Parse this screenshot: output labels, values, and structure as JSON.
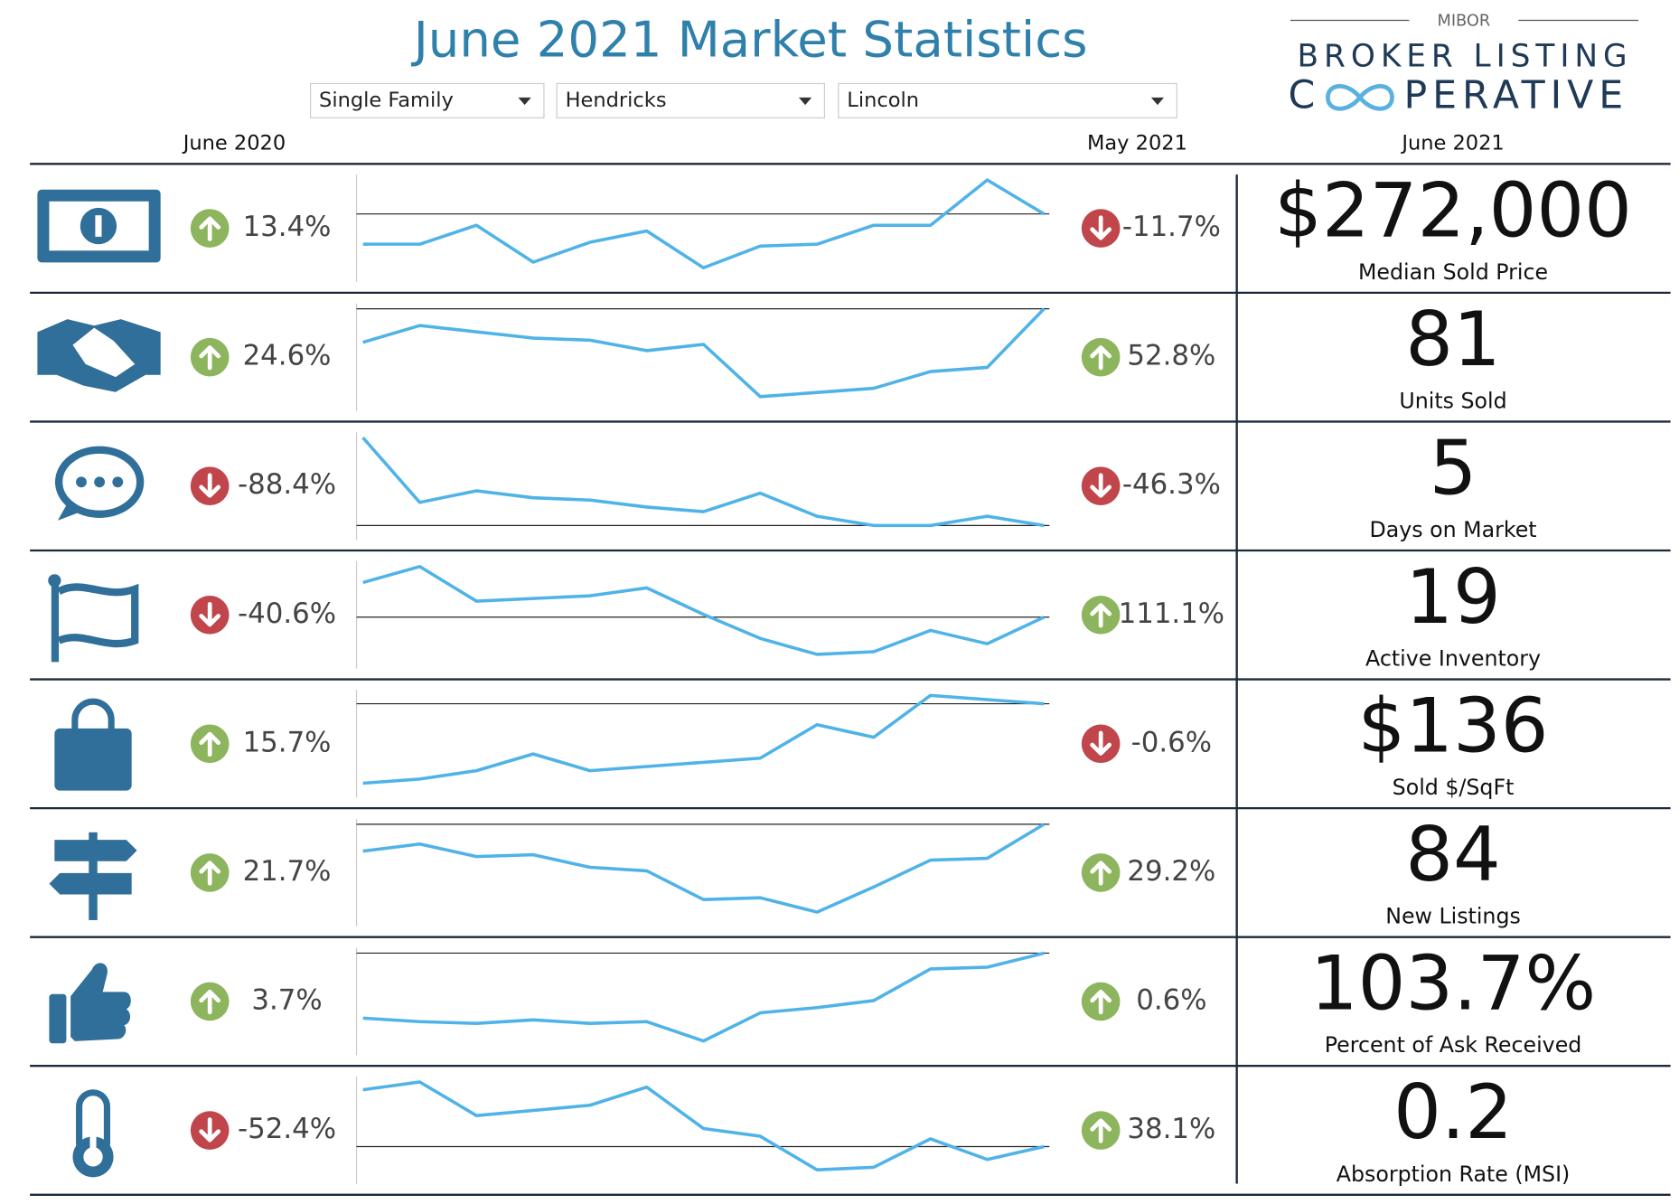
{
  "header": {
    "title": "June 2021 Market Statistics"
  },
  "filters": [
    "Single Family",
    "Hendricks",
    "Lincoln"
  ],
  "logo": {
    "top": "MIBOR",
    "line1": "BROKER LISTING",
    "line2_start": "C",
    "line2_end": "PERATIVE"
  },
  "columns": {
    "year_ago": "June 2020",
    "month_ago": "May 2021",
    "current": "June 2021"
  },
  "rows": [
    {
      "label": "Median Sold Price",
      "value": "$272,000",
      "yoy": "13.4%",
      "mom": "-11.7%",
      "trend": {
        "type": "line",
        "color": "#4fb3e8",
        "values": [
          240000,
          240000,
          260000,
          221000,
          242000,
          254000,
          215000,
          238000,
          240000,
          260000,
          260000,
          308000,
          272000
        ]
      }
    },
    {
      "label": "Units Sold",
      "value": "81",
      "yoy": "24.6%",
      "mom": "52.8%",
      "trend": {
        "type": "line",
        "color": "#4fb3e8",
        "values": [
          65,
          73,
          70,
          67,
          66,
          61,
          64,
          39,
          41,
          43,
          51,
          53,
          81
        ]
      }
    },
    {
      "label": "Days on Market",
      "value": "5",
      "yoy": "-88.4%",
      "mom": "-46.3%",
      "trend": {
        "type": "line",
        "color": "#4fb3e8",
        "values": [
          43,
          15,
          20,
          17,
          16,
          13,
          11,
          19,
          9,
          5,
          5,
          9,
          5
        ]
      }
    },
    {
      "label": "Active Inventory",
      "value": "19",
      "yoy": "-40.6%",
      "mom": "111.1%",
      "trend": {
        "type": "line",
        "color": "#4fb3e8",
        "values": [
          32,
          38,
          25,
          26,
          27,
          30,
          20,
          11,
          5,
          6,
          14,
          9,
          19
        ]
      }
    },
    {
      "label": "Sold $/SqFt",
      "value": "$136",
      "yoy": "15.7%",
      "mom": "-0.6%",
      "trend": {
        "type": "line",
        "color": "#4fb3e8",
        "values": [
          117,
          118,
          120,
          124,
          120,
          121,
          122,
          123,
          131,
          128,
          138,
          137,
          136
        ]
      }
    },
    {
      "label": "New Listings",
      "value": "84",
      "yoy": "21.7%",
      "mom": "29.2%",
      "trend": {
        "type": "line",
        "color": "#4fb3e8",
        "values": [
          69,
          73,
          66,
          67,
          60,
          58,
          42,
          43,
          35,
          49,
          64,
          65,
          84
        ]
      }
    },
    {
      "label": "Percent of Ask Received",
      "value": "103.7%",
      "yoy": "3.7%",
      "mom": "0.6%",
      "trend": {
        "type": "line",
        "color": "#4fb3e8",
        "values": [
          100.0,
          99.8,
          99.7,
          99.9,
          99.7,
          99.8,
          98.7,
          100.3,
          100.6,
          101.0,
          102.8,
          102.9,
          103.7
        ]
      }
    },
    {
      "label": "Absorption Rate (MSI)",
      "value": "0.2",
      "yoy": "-52.4%",
      "mom": "38.1%",
      "trend": {
        "type": "line",
        "color": "#4fb3e8",
        "values": [
          0.42,
          0.45,
          0.32,
          0.34,
          0.36,
          0.43,
          0.27,
          0.24,
          0.11,
          0.12,
          0.23,
          0.15,
          0.2
        ]
      }
    }
  ]
}
